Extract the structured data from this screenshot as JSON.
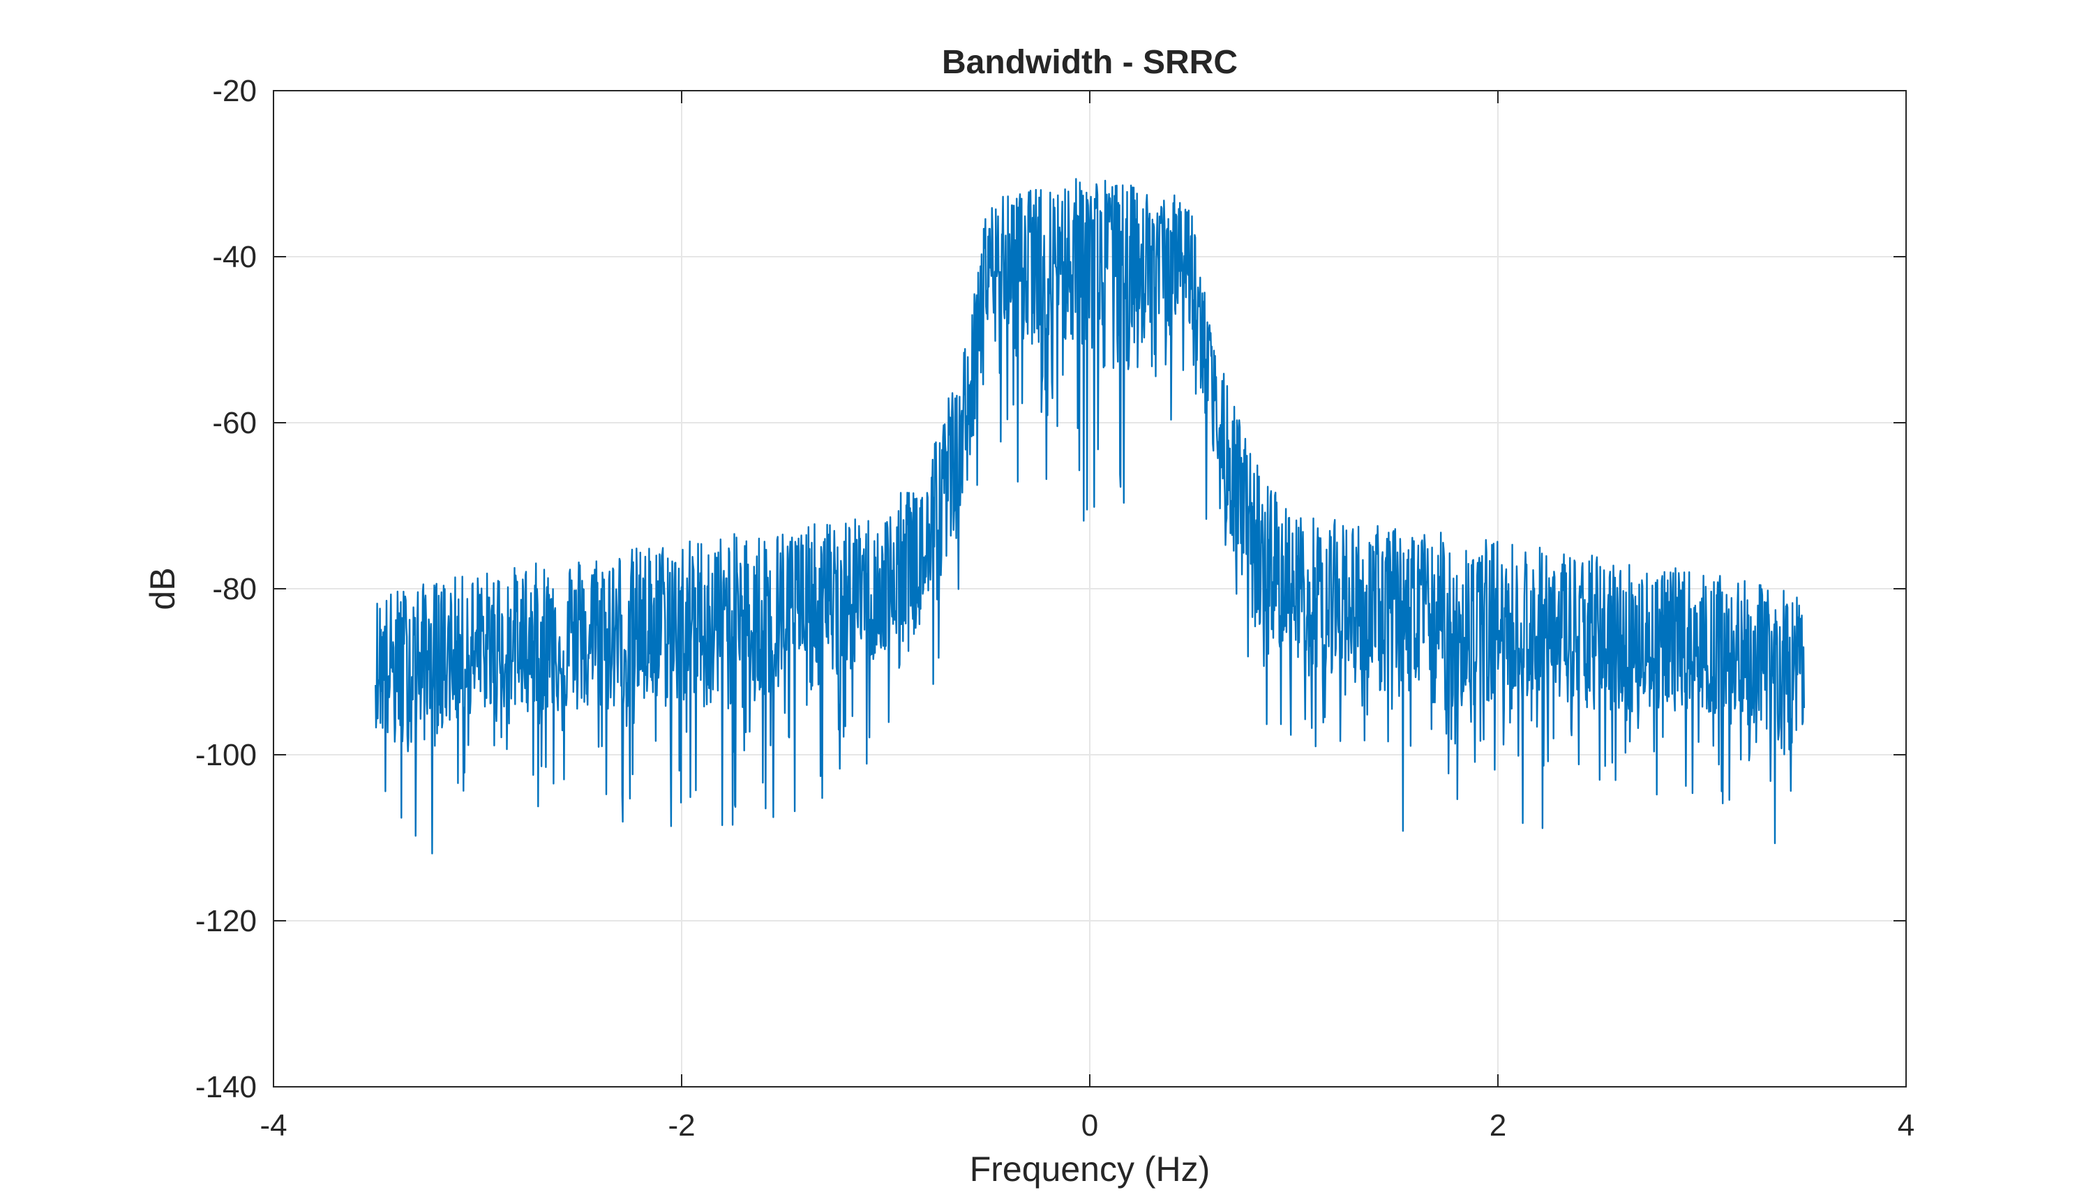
{
  "chart_data": {
    "type": "line",
    "title": "Bandwidth - SRRC",
    "xlabel": "Frequency (Hz)",
    "ylabel": "dB",
    "xlim": [
      -4,
      4
    ],
    "ylim": [
      -140,
      -20
    ],
    "xticks": [
      -4,
      -2,
      0,
      2,
      4
    ],
    "xtick_labels": [
      "-4",
      "-2",
      "0",
      "2",
      "4"
    ],
    "yticks": [
      -140,
      -120,
      -100,
      -80,
      -60,
      -40,
      -20
    ],
    "ytick_labels": [
      "-140",
      "-120",
      "-100",
      "-80",
      "-60",
      "-40",
      "-20"
    ],
    "grid": true,
    "legend": "none",
    "series": [
      {
        "color": "#0072BD",
        "x_range": [
          -3.5,
          3.5
        ],
        "envelope": {
          "description_points": [
            {
              "x": -3.5,
              "median": -90,
              "upper": -81,
              "lower": -109
            },
            {
              "x": -3.4,
              "median": -90,
              "upper": -80,
              "lower": -120
            },
            {
              "x": -3.0,
              "median": -89,
              "upper": -78,
              "lower": -105
            },
            {
              "x": -2.5,
              "median": -88,
              "upper": -76,
              "lower": -108
            },
            {
              "x": -2.0,
              "median": -86,
              "upper": -74,
              "lower": -110
            },
            {
              "x": -1.6,
              "median": -85,
              "upper": -73,
              "lower": -113
            },
            {
              "x": -1.0,
              "median": -82,
              "upper": -71,
              "lower": -100
            },
            {
              "x": -0.8,
              "median": -78,
              "upper": -64,
              "lower": -97
            },
            {
              "x": -0.6,
              "median": -60,
              "upper": -50,
              "lower": -80
            },
            {
              "x": -0.5,
              "median": -42,
              "upper": -33,
              "lower": -60
            },
            {
              "x": -0.3,
              "median": -40,
              "upper": -32,
              "lower": -70
            },
            {
              "x": 0.0,
              "median": -40,
              "upper": -30,
              "lower": -73
            },
            {
              "x": 0.3,
              "median": -40,
              "upper": -32,
              "lower": -70
            },
            {
              "x": 0.5,
              "median": -42,
              "upper": -33,
              "lower": -60
            },
            {
              "x": 0.6,
              "median": -60,
              "upper": -50,
              "lower": -80
            },
            {
              "x": 0.8,
              "median": -78,
              "upper": -64,
              "lower": -97
            },
            {
              "x": 1.0,
              "median": -82,
              "upper": -71,
              "lower": -100
            },
            {
              "x": 1.65,
              "median": -85,
              "upper": -73,
              "lower": -113
            },
            {
              "x": 2.0,
              "median": -86,
              "upper": -74,
              "lower": -110
            },
            {
              "x": 2.5,
              "median": -88,
              "upper": -76,
              "lower": -108
            },
            {
              "x": 3.0,
              "median": -89,
              "upper": -78,
              "lower": -105
            },
            {
              "x": 3.4,
              "median": -90,
              "upper": -80,
              "lower": -120
            },
            {
              "x": 3.5,
              "median": -90,
              "upper": -81,
              "lower": -109
            }
          ]
        }
      }
    ]
  }
}
